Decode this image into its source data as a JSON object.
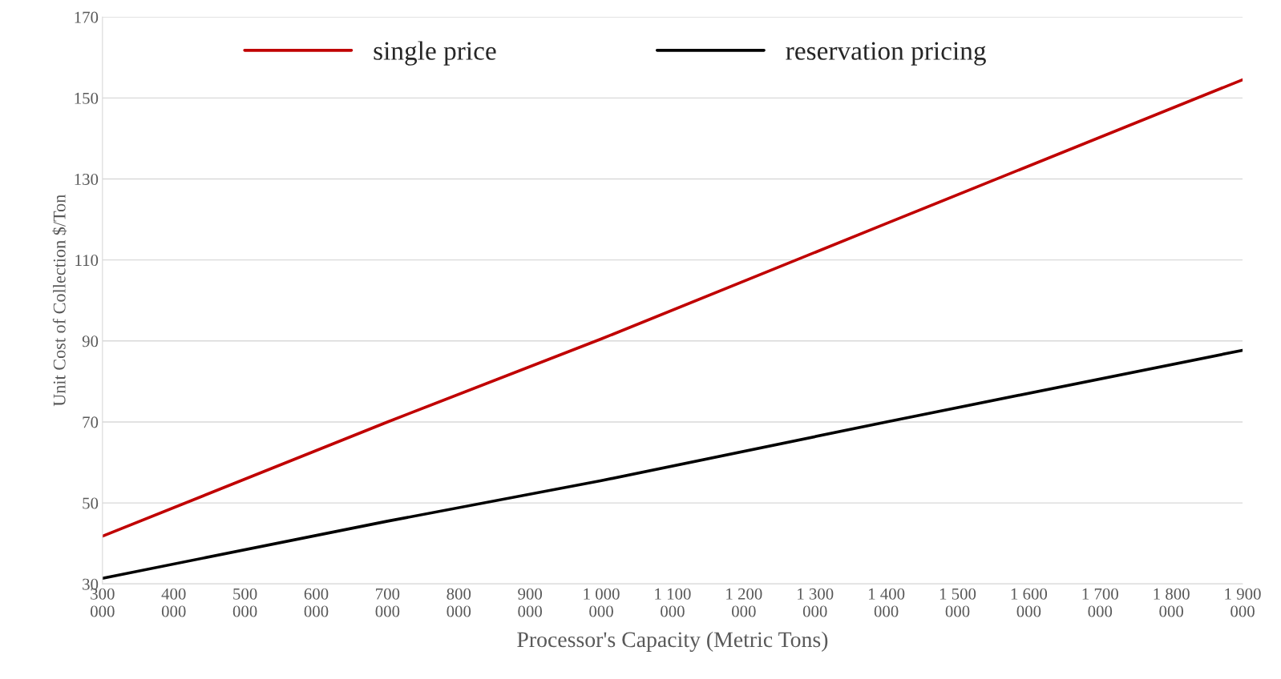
{
  "chart_data": {
    "type": "line",
    "xlabel": "Processor's Capacity (Metric Tons)",
    "ylabel": "Unit Cost of Collection $/Ton",
    "x": [
      300000,
      700000,
      1000000,
      1400000,
      1900000
    ],
    "series": [
      {
        "name": "single price",
        "color": "#c00000",
        "values": [
          41.8,
          70,
          90.5,
          119,
          154.5
        ]
      },
      {
        "name": "reservation pricing",
        "color": "#000000",
        "values": [
          31.4,
          45.5,
          55.5,
          70,
          87.7
        ]
      }
    ],
    "xlim": [
      300000,
      1900000
    ],
    "xticks": [
      {
        "value": 300000,
        "label": "300\n000"
      },
      {
        "value": 400000,
        "label": "400\n000"
      },
      {
        "value": 500000,
        "label": "500\n000"
      },
      {
        "value": 600000,
        "label": "600\n000"
      },
      {
        "value": 700000,
        "label": "700\n000"
      },
      {
        "value": 800000,
        "label": "800\n000"
      },
      {
        "value": 900000,
        "label": "900\n000"
      },
      {
        "value": 1000000,
        "label": "1 000\n000"
      },
      {
        "value": 1100000,
        "label": "1 100\n000"
      },
      {
        "value": 1200000,
        "label": "1 200\n000"
      },
      {
        "value": 1300000,
        "label": "1 300\n000"
      },
      {
        "value": 1400000,
        "label": "1 400\n000"
      },
      {
        "value": 1500000,
        "label": "1 500\n000"
      },
      {
        "value": 1600000,
        "label": "1 600\n000"
      },
      {
        "value": 1700000,
        "label": "1 700\n000"
      },
      {
        "value": 1800000,
        "label": "1 800\n000"
      },
      {
        "value": 1900000,
        "label": "1 900\n000"
      }
    ],
    "ylim": [
      30,
      170
    ],
    "yticks": [
      30,
      50,
      70,
      90,
      110,
      130,
      150,
      170
    ],
    "grid": "y",
    "legend": "top",
    "marker": "none",
    "line_style": "solid"
  }
}
